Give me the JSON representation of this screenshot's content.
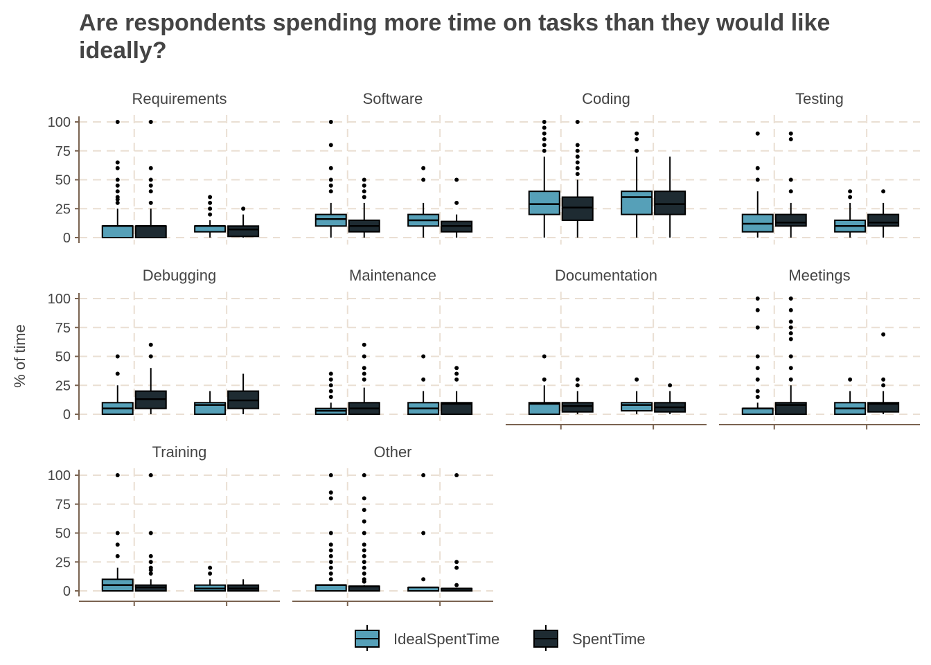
{
  "chart_data": {
    "type": "boxplot",
    "title_line1": "Are respondents spending more time on tasks than they would like",
    "title_line2": "ideally?",
    "xlabel": "",
    "ylabel": "% of time",
    "ylim": [
      0,
      100
    ],
    "yticks": [
      0,
      25,
      50,
      75,
      100
    ],
    "grid": "dashed",
    "legend_position": "bottom",
    "colors": {
      "IdealSpentTime": "#56a0b8",
      "SpentTime": "#1e2b32",
      "grid": "#eadfd3",
      "axis": "#7a6350",
      "text": "#444444"
    },
    "series": [
      {
        "name": "IdealSpentTime"
      },
      {
        "name": "SpentTime"
      }
    ],
    "facets": [
      {
        "name": "Requirements",
        "groups": [
          [
            {
              "q1": 0,
              "med": 10,
              "q3": 10,
              "lo": 0,
              "hi": 25,
              "out": [
                30,
                33,
                35,
                40,
                45,
                50,
                60,
                65,
                100
              ]
            },
            {
              "q1": 0,
              "med": 10,
              "q3": 10,
              "lo": 0,
              "hi": 25,
              "out": [
                30,
                40,
                45,
                50,
                60,
                100
              ]
            }
          ],
          [
            {
              "q1": 5,
              "med": 10,
              "q3": 10,
              "lo": 0,
              "hi": 15,
              "out": [
                20,
                25,
                30,
                35
              ]
            },
            {
              "q1": 1,
              "med": 7,
              "q3": 10,
              "lo": 0,
              "hi": 20,
              "out": [
                25
              ]
            }
          ]
        ]
      },
      {
        "name": "Software",
        "groups": [
          [
            {
              "q1": 10,
              "med": 16,
              "q3": 20,
              "lo": 0,
              "hi": 30,
              "out": [
                40,
                45,
                50,
                60,
                80,
                100
              ]
            },
            {
              "q1": 5,
              "med": 10,
              "q3": 15,
              "lo": 0,
              "hi": 30,
              "out": [
                35,
                40,
                45,
                50
              ]
            }
          ],
          [
            {
              "q1": 10,
              "med": 15,
              "q3": 20,
              "lo": 0,
              "hi": 30,
              "out": [
                50,
                60
              ]
            },
            {
              "q1": 5,
              "med": 10,
              "q3": 14,
              "lo": 0,
              "hi": 20,
              "out": [
                30,
                50
              ]
            }
          ]
        ]
      },
      {
        "name": "Coding",
        "groups": [
          [
            {
              "q1": 20,
              "med": 29,
              "q3": 40,
              "lo": 0,
              "hi": 70,
              "out": [
                75,
                80,
                85,
                90,
                95,
                100
              ]
            },
            {
              "q1": 15,
              "med": 26,
              "q3": 35,
              "lo": 0,
              "hi": 50,
              "out": [
                55,
                60,
                65,
                70,
                75,
                80,
                100
              ]
            }
          ],
          [
            {
              "q1": 20,
              "med": 35,
              "q3": 40,
              "lo": 0,
              "hi": 70,
              "out": [
                75,
                85,
                90
              ]
            },
            {
              "q1": 20,
              "med": 29,
              "q3": 40,
              "lo": 0,
              "hi": 70,
              "out": []
            }
          ]
        ]
      },
      {
        "name": "Testing",
        "groups": [
          [
            {
              "q1": 5,
              "med": 12,
              "q3": 20,
              "lo": 0,
              "hi": 40,
              "out": [
                50,
                60,
                90
              ]
            },
            {
              "q1": 10,
              "med": 13,
              "q3": 20,
              "lo": 0,
              "hi": 30,
              "out": [
                40,
                50,
                85,
                90
              ]
            }
          ],
          [
            {
              "q1": 5,
              "med": 10,
              "q3": 15,
              "lo": 0,
              "hi": 30,
              "out": [
                35,
                40
              ]
            },
            {
              "q1": 10,
              "med": 13,
              "q3": 20,
              "lo": 0,
              "hi": 30,
              "out": [
                40
              ]
            }
          ]
        ]
      },
      {
        "name": "Debugging",
        "groups": [
          [
            {
              "q1": 0,
              "med": 5,
              "q3": 10,
              "lo": 0,
              "hi": 25,
              "out": [
                35,
                50
              ]
            },
            {
              "q1": 5,
              "med": 13,
              "q3": 20,
              "lo": 0,
              "hi": 40,
              "out": [
                50,
                60
              ]
            }
          ],
          [
            {
              "q1": 0,
              "med": 8,
              "q3": 10,
              "lo": 0,
              "hi": 20,
              "out": []
            },
            {
              "q1": 5,
              "med": 12,
              "q3": 20,
              "lo": 0,
              "hi": 35,
              "out": []
            }
          ]
        ]
      },
      {
        "name": "Maintenance",
        "groups": [
          [
            {
              "q1": 0,
              "med": 3,
              "q3": 5,
              "lo": 0,
              "hi": 10,
              "out": [
                15,
                20,
                25,
                30,
                35
              ]
            },
            {
              "q1": 0,
              "med": 5,
              "q3": 10,
              "lo": 0,
              "hi": 23,
              "out": [
                30,
                35,
                40,
                50,
                60
              ]
            }
          ],
          [
            {
              "q1": 0,
              "med": 5,
              "q3": 10,
              "lo": 0,
              "hi": 20,
              "out": [
                30,
                50
              ]
            },
            {
              "q1": 0,
              "med": 9,
              "q3": 10,
              "lo": 0,
              "hi": 20,
              "out": [
                30,
                35,
                40
              ]
            }
          ]
        ]
      },
      {
        "name": "Documentation",
        "groups": [
          [
            {
              "q1": 0,
              "med": 9,
              "q3": 10,
              "lo": 0,
              "hi": 25,
              "out": [
                30,
                50
              ]
            },
            {
              "q1": 2,
              "med": 7,
              "q3": 10,
              "lo": 0,
              "hi": 20,
              "out": [
                25,
                30
              ]
            }
          ],
          [
            {
              "q1": 3,
              "med": 8,
              "q3": 10,
              "lo": 0,
              "hi": 20,
              "out": [
                30
              ]
            },
            {
              "q1": 2,
              "med": 6,
              "q3": 10,
              "lo": 0,
              "hi": 20,
              "out": [
                25
              ]
            }
          ]
        ]
      },
      {
        "name": "Meetings",
        "groups": [
          [
            {
              "q1": 0,
              "med": 5,
              "q3": 5,
              "lo": 0,
              "hi": 10,
              "out": [
                15,
                20,
                30,
                40,
                50,
                75,
                90,
                100
              ]
            },
            {
              "q1": 0,
              "med": 8,
              "q3": 10,
              "lo": 0,
              "hi": 25,
              "out": [
                30,
                40,
                50,
                65,
                70,
                75,
                80,
                90,
                100
              ]
            }
          ],
          [
            {
              "q1": 0,
              "med": 5,
              "q3": 10,
              "lo": 0,
              "hi": 20,
              "out": [
                30
              ]
            },
            {
              "q1": 2,
              "med": 9,
              "q3": 10,
              "lo": 0,
              "hi": 20,
              "out": [
                25,
                30,
                69
              ]
            }
          ]
        ]
      },
      {
        "name": "Training",
        "groups": [
          [
            {
              "q1": 0,
              "med": 5,
              "q3": 10,
              "lo": 0,
              "hi": 20,
              "out": [
                30,
                40,
                50,
                100
              ]
            },
            {
              "q1": 0,
              "med": 3,
              "q3": 5,
              "lo": 0,
              "hi": 10,
              "out": [
                15,
                18,
                20,
                25,
                30,
                50,
                100
              ]
            }
          ],
          [
            {
              "q1": 0,
              "med": 2,
              "q3": 5,
              "lo": 0,
              "hi": 10,
              "out": [
                15,
                20
              ]
            },
            {
              "q1": 0,
              "med": 2,
              "q3": 5,
              "lo": 0,
              "hi": 10,
              "out": []
            }
          ]
        ]
      },
      {
        "name": "Other",
        "groups": [
          [
            {
              "q1": 0,
              "med": 5,
              "q3": 5,
              "lo": 0,
              "hi": 5,
              "out": [
                10,
                15,
                20,
                25,
                30,
                35,
                40,
                50,
                80,
                85,
                100
              ]
            },
            {
              "q1": 0,
              "med": 4,
              "q3": 4,
              "lo": 0,
              "hi": 5,
              "out": [
                8,
                10,
                15,
                20,
                25,
                30,
                35,
                40,
                50,
                60,
                70,
                80,
                100
              ]
            }
          ],
          [
            {
              "q1": 0,
              "med": 3,
              "q3": 3,
              "lo": 0,
              "hi": 3,
              "out": [
                10,
                50,
                100
              ]
            },
            {
              "q1": 0,
              "med": 2,
              "q3": 2,
              "lo": 0,
              "hi": 2,
              "out": [
                5,
                20,
                25,
                100
              ]
            }
          ]
        ]
      }
    ]
  }
}
